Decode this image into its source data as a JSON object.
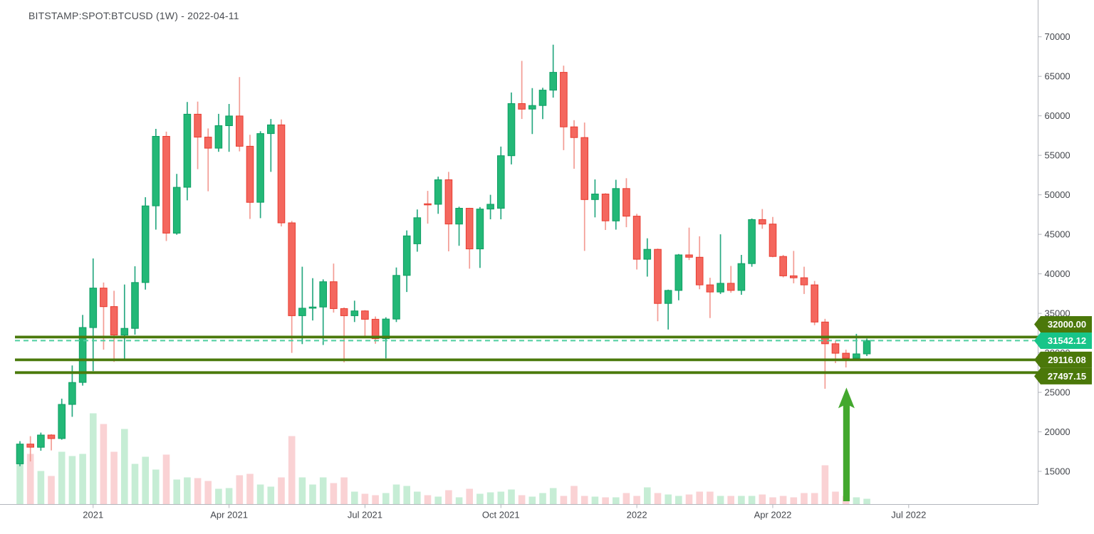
{
  "header": {
    "title": "BITSTAMP:SPOT:BTCUSD (1W) - 2022-04-11"
  },
  "colors": {
    "up_fill": "#23b877",
    "up_stroke": "#0e9e63",
    "up_wick": "#29a982",
    "down_fill": "#f4675e",
    "down_stroke": "#e83c30",
    "down_wick": "#f39c94",
    "vol_up": "#c6edd5",
    "vol_down": "#fad2d4",
    "level_line": "#4b7a0c",
    "level_badge": "#4b780a",
    "current_line": "#4ecfa0",
    "current_badge": "#17c589",
    "axis_line": "#b2b5bc",
    "axis_text": "#44474d",
    "arrow": "#43a82e",
    "badge_text": "#ffffff",
    "title_text": "#4a4d52"
  },
  "chart_data": {
    "type": "candlestick",
    "symbol": "BITSTAMP:SPOT:BTCUSD",
    "timeframe": "1W",
    "as_of_date": "2022-04-11",
    "legend_position": "none",
    "grid": false,
    "y_axis": {
      "tick_values": [
        70000,
        65000,
        60000,
        55000,
        50000,
        45000,
        40000,
        35000,
        30000,
        25000,
        20000,
        15000
      ],
      "tick_labels": [
        "70000",
        "65000",
        "60000",
        "55000",
        "50000",
        "45000",
        "40000",
        "35000",
        "30000",
        "25000",
        "20000",
        "15000"
      ],
      "range_top": 70000,
      "range_bottom": 10800
    },
    "x_axis": {
      "ticks": [
        {
          "label": "2021",
          "week_index": 7
        },
        {
          "label": "Apr 2021",
          "week_index": 20
        },
        {
          "label": "Jul 2021",
          "week_index": 33
        },
        {
          "label": "Oct 2021",
          "week_index": 46
        },
        {
          "label": "2022",
          "week_index": 59
        },
        {
          "label": "Apr 2022",
          "week_index": 72
        },
        {
          "label": "Jul 2022",
          "week_index": 85
        }
      ]
    },
    "levels": [
      {
        "price": 32000.0,
        "label": "32000.00"
      },
      {
        "price": 29116.08,
        "label": "29116.08"
      },
      {
        "price": 27497.15,
        "label": "27497.15"
      }
    ],
    "current_price": {
      "price": 31542.12,
      "label": "31542.12"
    },
    "arrow_annotation": {
      "week_index": 79,
      "tip_price": 25600
    },
    "candle_fields": [
      "date",
      "open",
      "high",
      "low",
      "close",
      "volume"
    ],
    "candles": [
      [
        "2020-11-16",
        15950,
        18820,
        15650,
        18450,
        57
      ],
      [
        "2020-11-23",
        18450,
        19450,
        16250,
        18050,
        71
      ],
      [
        "2020-11-30",
        18050,
        19900,
        17600,
        19600,
        47
      ],
      [
        "2020-12-07",
        19600,
        19700,
        17650,
        19150,
        40
      ],
      [
        "2020-12-14",
        19150,
        24200,
        19000,
        23470,
        74
      ],
      [
        "2020-12-21",
        23470,
        28400,
        21900,
        26250,
        68
      ],
      [
        "2020-12-28",
        26250,
        34800,
        25850,
        33200,
        71
      ],
      [
        "2021-01-04",
        33200,
        41950,
        27700,
        38200,
        128
      ],
      [
        "2021-01-11",
        38200,
        38900,
        30400,
        35850,
        113
      ],
      [
        "2021-01-18",
        35850,
        37850,
        28850,
        32250,
        74
      ],
      [
        "2021-01-25",
        32250,
        38650,
        29250,
        33100,
        106
      ],
      [
        "2021-02-01",
        33100,
        40950,
        32300,
        38900,
        57
      ],
      [
        "2021-02-08",
        38900,
        49700,
        38000,
        48600,
        67
      ],
      [
        "2021-02-15",
        48600,
        58350,
        45600,
        57400,
        49
      ],
      [
        "2021-02-22",
        57400,
        58000,
        44150,
        45150,
        70
      ],
      [
        "2021-03-01",
        45150,
        52650,
        44950,
        50950,
        35
      ],
      [
        "2021-03-08",
        50950,
        61750,
        49300,
        60200,
        38
      ],
      [
        "2021-03-15",
        60200,
        61800,
        53250,
        57300,
        37
      ],
      [
        "2021-03-22",
        57300,
        58400,
        50450,
        55900,
        33
      ],
      [
        "2021-03-29",
        55900,
        60250,
        55450,
        58750,
        22
      ],
      [
        "2021-04-05",
        58750,
        61500,
        55450,
        59980,
        23
      ],
      [
        "2021-04-12",
        59980,
        64900,
        55500,
        56150,
        41
      ],
      [
        "2021-04-19",
        56150,
        57600,
        46950,
        49050,
        43
      ],
      [
        "2021-04-26",
        49050,
        58050,
        47050,
        57750,
        28
      ],
      [
        "2021-05-03",
        57750,
        59600,
        52900,
        58850,
        25
      ],
      [
        "2021-05-10",
        58850,
        59550,
        46000,
        46450,
        38
      ],
      [
        "2021-05-17",
        46450,
        46700,
        30000,
        34700,
        96
      ],
      [
        "2021-05-24",
        34700,
        40900,
        31100,
        35650,
        38
      ],
      [
        "2021-05-31",
        35650,
        39450,
        34100,
        35800,
        28
      ],
      [
        "2021-06-07",
        35800,
        39300,
        31000,
        39000,
        38
      ],
      [
        "2021-06-14",
        39000,
        41300,
        35100,
        35600,
        30
      ],
      [
        "2021-06-21",
        35600,
        35750,
        28800,
        34700,
        38
      ],
      [
        "2021-06-28",
        34700,
        36600,
        33900,
        35300,
        18
      ],
      [
        "2021-07-05",
        35300,
        35400,
        32100,
        34250,
        15
      ],
      [
        "2021-07-12",
        34250,
        34600,
        31150,
        31800,
        13
      ],
      [
        "2021-07-19",
        31800,
        34500,
        29300,
        34280,
        16
      ],
      [
        "2021-07-26",
        34280,
        40800,
        33900,
        39800,
        28
      ],
      [
        "2021-08-02",
        39800,
        45500,
        37700,
        44800,
        26
      ],
      [
        "2021-08-09",
        43800,
        48150,
        42800,
        47100,
        18
      ],
      [
        "2021-08-16",
        48870,
        50500,
        46350,
        48800,
        13
      ],
      [
        "2021-08-23",
        48800,
        52300,
        47600,
        51900,
        11
      ],
      [
        "2021-08-30",
        51900,
        52900,
        42850,
        46300,
        20
      ],
      [
        "2021-09-06",
        46300,
        48500,
        43550,
        48300,
        10
      ],
      [
        "2021-09-13",
        48300,
        48350,
        40650,
        43150,
        22
      ],
      [
        "2021-09-20",
        43150,
        48450,
        40750,
        48200,
        15
      ],
      [
        "2021-09-27",
        48200,
        50000,
        46900,
        48800,
        17
      ],
      [
        "2021-10-04",
        48300,
        56100,
        46900,
        54950,
        18
      ],
      [
        "2021-10-11",
        54950,
        62950,
        53850,
        61550,
        21
      ],
      [
        "2021-10-18",
        61550,
        66950,
        59600,
        60850,
        13
      ],
      [
        "2021-10-25",
        60850,
        63500,
        57700,
        61300,
        11
      ],
      [
        "2021-11-01",
        61300,
        63550,
        59580,
        63250,
        16
      ],
      [
        "2021-11-08",
        63250,
        69000,
        62300,
        65500,
        23
      ],
      [
        "2021-11-15",
        65500,
        66350,
        55650,
        58600,
        12
      ],
      [
        "2021-11-22",
        58600,
        59450,
        53300,
        57250,
        26
      ],
      [
        "2021-11-29",
        57250,
        59150,
        42900,
        49400,
        12
      ],
      [
        "2021-12-06",
        49400,
        51950,
        47150,
        50100,
        11
      ],
      [
        "2021-12-13",
        50100,
        50200,
        45550,
        46700,
        10
      ],
      [
        "2021-12-20",
        46700,
        51900,
        45600,
        50800,
        10
      ],
      [
        "2021-12-27",
        50800,
        52100,
        45900,
        47300,
        16
      ],
      [
        "2022-01-03",
        47300,
        47600,
        40550,
        41850,
        12
      ],
      [
        "2022-01-10",
        41850,
        44500,
        39650,
        43100,
        24
      ],
      [
        "2022-01-17",
        43100,
        43200,
        34000,
        36250,
        16
      ],
      [
        "2022-01-24",
        36250,
        38000,
        32950,
        37900,
        14
      ],
      [
        "2022-01-31",
        37900,
        42500,
        36650,
        42400,
        12
      ],
      [
        "2022-02-07",
        42400,
        45850,
        41750,
        42100,
        14
      ],
      [
        "2022-02-14",
        42100,
        44750,
        38050,
        38600,
        18
      ],
      [
        "2022-02-21",
        38600,
        39500,
        34400,
        37700,
        18
      ],
      [
        "2022-02-28",
        37700,
        45000,
        37450,
        38800,
        12
      ],
      [
        "2022-03-07",
        38800,
        41000,
        37600,
        37900,
        12
      ],
      [
        "2022-03-14",
        37900,
        42400,
        37350,
        41300,
        12
      ],
      [
        "2022-03-21",
        41300,
        47000,
        40900,
        46870,
        12
      ],
      [
        "2022-03-28",
        46870,
        48200,
        45700,
        46300,
        14
      ],
      [
        "2022-04-04",
        46300,
        47200,
        42100,
        42200,
        10
      ],
      [
        "2022-04-11",
        42200,
        42400,
        39550,
        39750,
        12
      ],
      [
        "2022-04-18",
        39750,
        42900,
        38800,
        39500,
        10
      ],
      [
        "2022-04-25",
        39500,
        40900,
        37450,
        38600,
        16
      ],
      [
        "2022-05-02",
        38600,
        39100,
        33500,
        33900,
        16
      ],
      [
        "2022-05-09",
        33900,
        34300,
        25450,
        31150,
        55
      ],
      [
        "2022-05-16",
        31150,
        31550,
        28700,
        29950,
        18
      ],
      [
        "2022-05-23",
        29950,
        30400,
        28150,
        29330,
        12
      ],
      [
        "2022-05-30",
        29330,
        32400,
        29100,
        29870,
        10
      ],
      [
        "2022-06-06",
        29870,
        31800,
        29600,
        31542,
        8
      ]
    ]
  }
}
